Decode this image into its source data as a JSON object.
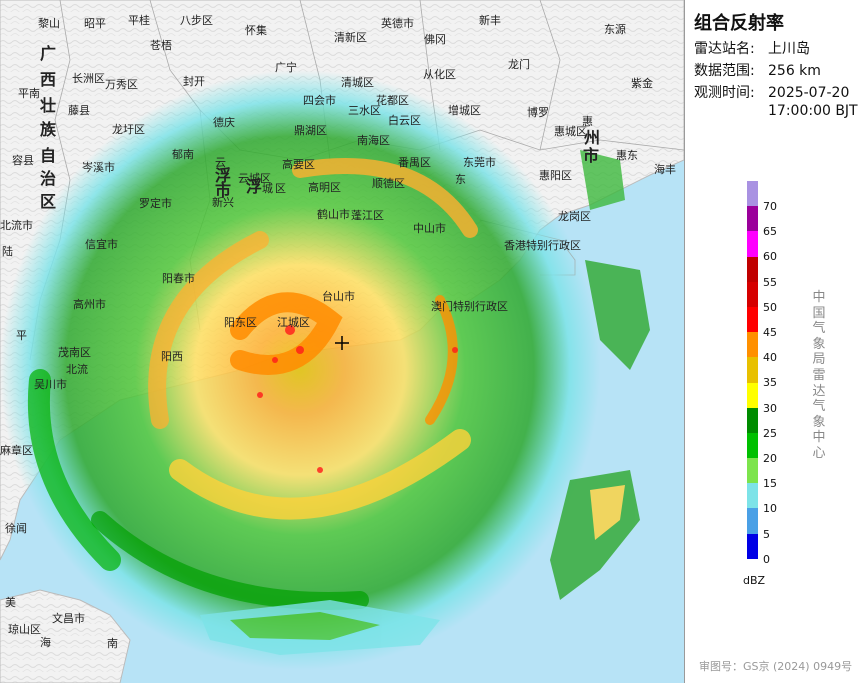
{
  "panel": {
    "title": "组合反射率",
    "station_label": "雷达站名:",
    "station_value": "上川岛",
    "range_label": "数据范围:",
    "range_value": "256 km",
    "time_label": "观测时间:",
    "time_date": "2025-07-20",
    "time_clock": "17:00:00 BJT",
    "unit": "dBZ",
    "organization": "中国气象局雷达气象中心",
    "map_approval": "审图号：GS京 (2024) 0949号"
  },
  "legend": {
    "ticks": [
      "70",
      "65",
      "60",
      "55",
      "50",
      "45",
      "40",
      "35",
      "30",
      "25",
      "20",
      "15",
      "10",
      "5",
      "0"
    ],
    "colors": [
      "#a992e2",
      "#9b009b",
      "#ff00ff",
      "#c00000",
      "#d60000",
      "#ff0000",
      "#ff9000",
      "#e8c000",
      "#ffff00",
      "#008c00",
      "#00c000",
      "#7ce44c",
      "#7de3e8",
      "#4aa0e6",
      "#0000e6"
    ]
  },
  "map": {
    "radar_center_marker": "crosshair-icon",
    "place_labels": [
      {
        "t": "黎山"
      },
      {
        "t": "昭平"
      },
      {
        "t": "平桂"
      },
      {
        "t": "八步区"
      },
      {
        "t": "怀集"
      },
      {
        "t": "清新区"
      },
      {
        "t": "英德市"
      },
      {
        "t": "新丰"
      },
      {
        "t": "东源"
      },
      {
        "t": "苍梧"
      },
      {
        "t": "广宁"
      },
      {
        "t": "佛冈"
      },
      {
        "t": "龙门"
      },
      {
        "t": "长洲区"
      },
      {
        "t": "万秀区"
      },
      {
        "t": "封开"
      },
      {
        "t": "清城区"
      },
      {
        "t": "从化区"
      },
      {
        "t": "紫金"
      },
      {
        "t": "平南"
      },
      {
        "t": "藤县"
      },
      {
        "t": "四会市"
      },
      {
        "t": "三水区"
      },
      {
        "t": "花都区"
      },
      {
        "t": "白云区"
      },
      {
        "t": "增城区"
      },
      {
        "t": "博罗"
      },
      {
        "t": "惠城区"
      },
      {
        "t": "龙圩区"
      },
      {
        "t": "德庆"
      },
      {
        "t": "鼎湖区"
      },
      {
        "t": "南海区"
      },
      {
        "t": "郁南"
      },
      {
        "t": "高要区"
      },
      {
        "t": "番禺区"
      },
      {
        "t": "东莞市"
      },
      {
        "t": "惠阳区"
      },
      {
        "t": "惠东"
      },
      {
        "t": "海丰"
      },
      {
        "t": "容县"
      },
      {
        "t": "岑溪市"
      },
      {
        "t": "罗定市"
      },
      {
        "t": "云城区"
      },
      {
        "t": "新兴"
      },
      {
        "t": "高明区"
      },
      {
        "t": "顺德区"
      },
      {
        "t": "鹤山市"
      },
      {
        "t": "蓬江区"
      },
      {
        "t": "中山市"
      },
      {
        "t": "龙岗区"
      },
      {
        "t": "北流市"
      },
      {
        "t": "信宜市"
      },
      {
        "t": "香港特别行政区"
      },
      {
        "t": "阳春市"
      },
      {
        "t": "台山市"
      },
      {
        "t": "澳门特别行政区"
      },
      {
        "t": "高州市"
      },
      {
        "t": "阳东区"
      },
      {
        "t": "江城区"
      },
      {
        "t": "阳西"
      },
      {
        "t": "茂南区"
      },
      {
        "t": "平"
      },
      {
        "t": "陆"
      },
      {
        "t": "北流"
      },
      {
        "t": "吴川市"
      },
      {
        "t": "麻章区"
      },
      {
        "t": "徐闻"
      },
      {
        "t": "美"
      },
      {
        "t": "文昌市"
      },
      {
        "t": "琼山区"
      },
      {
        "t": "海"
      },
      {
        "t": "南"
      },
      {
        "t": "东"
      },
      {
        "t": "广"
      },
      {
        "t": "西"
      },
      {
        "t": "壮"
      },
      {
        "t": "族"
      },
      {
        "t": "自"
      },
      {
        "t": "治"
      },
      {
        "t": "区"
      },
      {
        "t": "云"
      },
      {
        "t": "浮"
      },
      {
        "t": "市"
      },
      {
        "t": "浮"
      },
      {
        "t": "城"
      },
      {
        "t": "区"
      },
      {
        "t": "惠"
      },
      {
        "t": "州"
      },
      {
        "t": "市"
      }
    ]
  }
}
